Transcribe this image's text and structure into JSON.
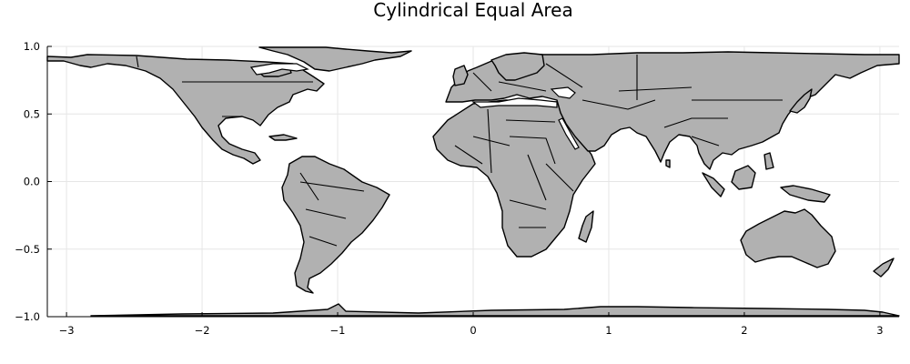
{
  "chart_data": {
    "type": "map",
    "title": "Cylindrical Equal Area",
    "projection": "cylindrical equal area",
    "xlabel": "",
    "ylabel": "",
    "xlim": [
      -3.14159,
      3.14159
    ],
    "ylim": [
      -1.0,
      1.0
    ],
    "xticks": [
      {
        "value": -3,
        "label": "−3"
      },
      {
        "value": -2,
        "label": "−2"
      },
      {
        "value": -1,
        "label": "−1"
      },
      {
        "value": 0,
        "label": "0"
      },
      {
        "value": 1,
        "label": "1"
      },
      {
        "value": 2,
        "label": "2"
      },
      {
        "value": 3,
        "label": "3"
      }
    ],
    "yticks": [
      {
        "value": 1.0,
        "label": "1.0"
      },
      {
        "value": 0.5,
        "label": "0.5"
      },
      {
        "value": 0.0,
        "label": "0.0"
      },
      {
        "value": -0.5,
        "label": "−0.5"
      },
      {
        "value": -1.0,
        "label": "−1.0"
      }
    ],
    "grid": true,
    "land_color": "#b1b1b1",
    "border_color": "#000000"
  }
}
